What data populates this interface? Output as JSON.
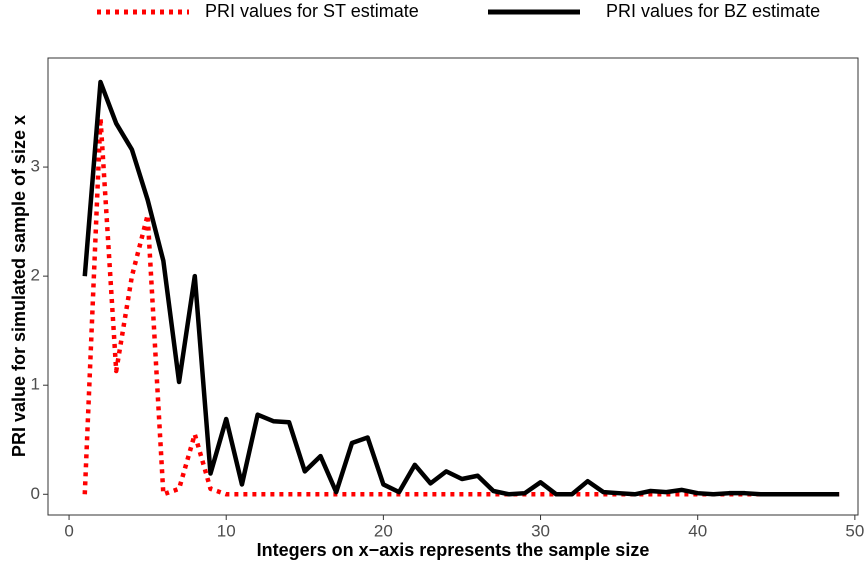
{
  "chart_data": {
    "type": "line",
    "xlabel": "Integers on x−axis represents the sample size",
    "ylabel": "PRI value for simulated sample of size x",
    "x": [
      1,
      2,
      3,
      4,
      5,
      6,
      7,
      8,
      9,
      10,
      11,
      12,
      13,
      14,
      15,
      16,
      17,
      18,
      19,
      20,
      21,
      22,
      23,
      24,
      25,
      26,
      27,
      28,
      29,
      30,
      31,
      32,
      33,
      34,
      35,
      36,
      37,
      38,
      39,
      40,
      41,
      42,
      43,
      44,
      45,
      46,
      47,
      48,
      49
    ],
    "series": [
      {
        "name": "PRI values for ST estimate",
        "color": "#ff0000",
        "style": "dotted",
        "values": [
          0,
          3.45,
          1.13,
          2.0,
          2.56,
          0,
          0.05,
          0.55,
          0.05,
          0,
          0,
          0,
          0,
          0,
          0,
          0,
          0,
          0,
          0,
          0,
          0,
          0,
          0,
          0,
          0,
          0,
          0,
          0,
          0,
          0,
          0,
          0,
          0,
          0,
          0,
          0,
          0,
          0,
          0,
          0,
          0,
          0,
          0,
          0,
          0,
          0,
          0,
          0,
          0
        ]
      },
      {
        "name": "PRI values for BZ estimate",
        "color": "#000000",
        "style": "solid",
        "values": [
          2.0,
          3.78,
          3.4,
          3.16,
          2.7,
          2.14,
          1.03,
          2.0,
          0.19,
          0.69,
          0.09,
          0.73,
          0.67,
          0.66,
          0.21,
          0.35,
          0.02,
          0.47,
          0.52,
          0.09,
          0.02,
          0.27,
          0.1,
          0.21,
          0.14,
          0.17,
          0.03,
          0,
          0.01,
          0.11,
          0,
          0,
          0.12,
          0.02,
          0.01,
          0,
          0.03,
          0.02,
          0.04,
          0.01,
          0,
          0.01,
          0.01,
          0,
          0,
          0,
          0,
          0,
          0
        ]
      }
    ],
    "xlim": [
      -1.34,
      50.2
    ],
    "ylim": [
      -0.19,
      4.0
    ],
    "xticks": [
      0,
      10,
      20,
      30,
      40,
      50
    ],
    "yticks": [
      0,
      1,
      2,
      3
    ],
    "grid": false,
    "legend": "top"
  }
}
